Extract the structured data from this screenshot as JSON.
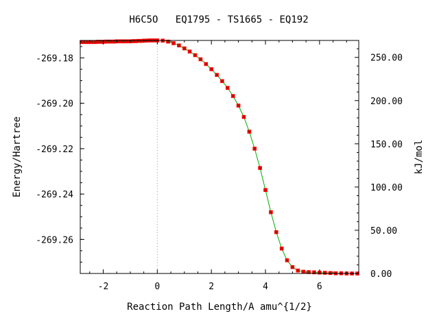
{
  "chart_data": {
    "type": "scatter",
    "title": "H6C5O   EQ1795 - TS1665 - EQ192",
    "xlabel": "Reaction Path Length/A amu^{1/2}",
    "ylabel": "Energy/Hartree",
    "y2label": "kJ/mol",
    "xlim": [
      -2.85,
      7.45
    ],
    "ylim": [
      -269.275,
      -269.1723
    ],
    "y2lim": [
      0.0,
      269.6
    ],
    "x_ticks": [
      -2,
      0,
      2,
      4,
      6
    ],
    "x_tick_labels": [
      "-2",
      "0",
      "2",
      "4",
      "6"
    ],
    "y_ticks": [
      -269.18,
      -269.2,
      -269.22,
      -269.24,
      -269.26
    ],
    "y_tick_labels": [
      "-269.18",
      "-269.20",
      "-269.22",
      "-269.24",
      "-269.26"
    ],
    "y2_ticks": [
      250,
      200,
      150,
      100,
      50,
      0
    ],
    "y2_tick_labels": [
      "250.00",
      "200.00",
      "150.00",
      "100.00",
      "50.00",
      "0.00"
    ],
    "ts_x": 0,
    "colors": {
      "points": "#ff0000",
      "point_core": "#7a2a00",
      "line": "#00aa00",
      "ts_line": "#999999"
    },
    "series": [
      {
        "x": [
          -2.8,
          -2.7,
          -2.6,
          -2.5,
          -2.4,
          -2.3,
          -2.2,
          -2.1,
          -2.0,
          -1.9,
          -1.8,
          -1.7,
          -1.6,
          -1.5,
          -1.4,
          -1.3,
          -1.2,
          -1.1,
          -1.0,
          -0.9,
          -0.8,
          -0.7,
          -0.6,
          -0.5,
          -0.4,
          -0.3,
          -0.2,
          -0.1,
          0.0,
          0.2,
          0.4,
          0.6,
          0.8,
          1.0,
          1.2,
          1.4,
          1.6,
          1.8,
          2.0,
          2.2,
          2.4,
          2.6,
          2.8,
          3.0,
          3.2,
          3.4,
          3.6,
          3.8,
          4.0,
          4.2,
          4.4,
          4.6,
          4.8,
          5.0,
          5.2,
          5.4,
          5.6,
          5.8,
          6.0,
          6.2,
          6.4,
          6.6,
          6.8,
          7.0,
          7.2,
          7.4
        ],
        "y": [
          -269.173,
          -269.173,
          -269.173,
          -269.173,
          -269.173,
          -269.173,
          -269.1729,
          -269.1729,
          -269.1729,
          -269.1728,
          -269.1728,
          -269.1728,
          -269.1728,
          -269.1727,
          -269.1727,
          -269.1727,
          -269.1727,
          -269.1727,
          -269.1727,
          -269.1726,
          -269.1726,
          -269.1725,
          -269.1725,
          -269.1724,
          -269.1724,
          -269.1723,
          -269.1723,
          -269.1723,
          -269.1723,
          -269.1724,
          -269.1728,
          -269.1735,
          -269.1745,
          -269.1758,
          -269.1772,
          -269.1788,
          -269.1806,
          -269.1827,
          -269.185,
          -269.1875,
          -269.1902,
          -269.1932,
          -269.1968,
          -269.201,
          -269.206,
          -269.2125,
          -269.22,
          -269.2285,
          -269.2382,
          -269.248,
          -269.2568,
          -269.264,
          -269.2692,
          -269.2722,
          -269.2737,
          -269.2742,
          -269.2744,
          -269.2745,
          -269.2746,
          -269.2747,
          -269.2748,
          -269.2749,
          -269.2749,
          -269.275,
          -269.275,
          -269.275
        ]
      }
    ]
  }
}
